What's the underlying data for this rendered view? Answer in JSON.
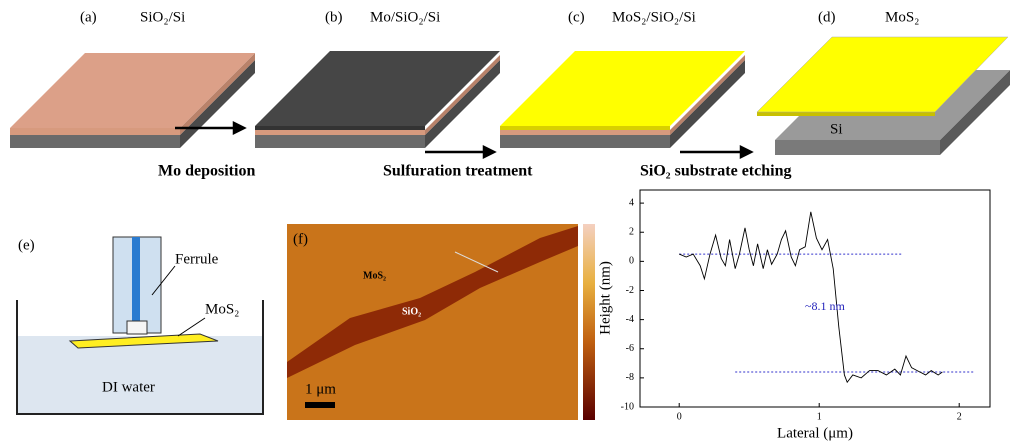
{
  "panels": [
    {
      "label": "(a)",
      "title": "SiO₂/Si"
    },
    {
      "label": "(b)",
      "title": "Mo/SiO₂/Si"
    },
    {
      "label": "(c)",
      "title": "MoS₂/SiO₂/Si"
    },
    {
      "label": "(d)",
      "title": "MoS₂"
    }
  ],
  "steps": [
    "Mo deposition",
    "Sulfuration treatment",
    "SiO₂ substrate etching"
  ],
  "si_label": "Si",
  "panel_e": {
    "label": "(e)",
    "ferrule": "Ferrule",
    "film": "MoS₂",
    "liquid": "DI water"
  },
  "panel_f": {
    "label": "(f)",
    "region1": "MoS₂",
    "region2": "SiO₂",
    "scale_bar": "1 μm"
  },
  "chart_data": {
    "type": "line",
    "color": "#000000",
    "x": [
      0,
      0.05,
      0.1,
      0.15,
      0.18,
      0.22,
      0.26,
      0.3,
      0.33,
      0.36,
      0.4,
      0.43,
      0.47,
      0.5,
      0.53,
      0.56,
      0.6,
      0.63,
      0.66,
      0.7,
      0.73,
      0.76,
      0.8,
      0.83,
      0.86,
      0.9,
      0.94,
      0.98,
      1.02,
      1.06,
      1.1,
      1.14,
      1.18,
      1.2,
      1.24,
      1.3,
      1.36,
      1.42,
      1.48,
      1.54,
      1.58,
      1.62,
      1.66,
      1.7,
      1.76,
      1.8,
      1.85,
      1.88
    ],
    "values": [
      0.5,
      0.3,
      0.5,
      -0.3,
      -1.2,
      0.5,
      1.8,
      0.2,
      -0.3,
      1.5,
      -0.5,
      0.5,
      2.3,
      0.8,
      -0.3,
      1.2,
      -0.5,
      0.8,
      -0.2,
      0.5,
      1.5,
      2.1,
      0.3,
      -0.3,
      0.8,
      1.0,
      3.4,
      1.6,
      0.8,
      1.5,
      -0.5,
      -4.5,
      -7.8,
      -8.3,
      -7.8,
      -8.0,
      -7.5,
      -7.5,
      -7.8,
      -7.4,
      -7.8,
      -6.5,
      -7.3,
      -7.5,
      -7.8,
      -7.5,
      -7.8,
      -7.6
    ],
    "xlim": [
      -0.28,
      2.22
    ],
    "ylim": [
      -10,
      4.9
    ],
    "xticks": [
      0,
      1,
      2
    ],
    "yticks": [
      4,
      2,
      0,
      -2,
      -4,
      -6,
      -8,
      -10
    ],
    "xlabel": "Lateral (μm)",
    "ylabel": "Height (nm)",
    "annotation": "~8.1 nm",
    "ref_lines": [
      {
        "y": 0.5,
        "x": [
          0,
          1.6
        ]
      },
      {
        "y": -7.6,
        "x": [
          0.4,
          2.1
        ]
      }
    ]
  }
}
